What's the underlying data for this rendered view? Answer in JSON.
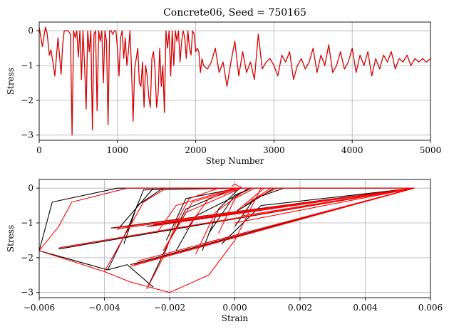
{
  "chart_data": [
    {
      "type": "line",
      "title": "Concrete06, Seed = 750165",
      "xlabel": "Step Number",
      "ylabel": "Stress",
      "xlim": [
        0,
        5000
      ],
      "ylim": [
        -3.15,
        0.25
      ],
      "xticks": [
        0,
        1000,
        2000,
        3000,
        4000,
        5000
      ],
      "xtick_labels": [
        "0",
        "1000",
        "2000",
        "3000",
        "4000",
        "5000"
      ],
      "yticks": [
        0,
        -1,
        -2,
        -3
      ],
      "ytick_labels": [
        "0",
        "−1",
        "−2",
        "−3"
      ],
      "grid": true,
      "legend": "none",
      "series": [
        {
          "color": "#d40000",
          "x": [
            0,
            40,
            80,
            100,
            130,
            150,
            175,
            200,
            240,
            280,
            300,
            320,
            340,
            370,
            400,
            420,
            440,
            460,
            480,
            500,
            520,
            540,
            560,
            580,
            600,
            620,
            640,
            660,
            680,
            700,
            720,
            740,
            760,
            780,
            800,
            820,
            840,
            860,
            880,
            900,
            920,
            940,
            960,
            980,
            1000,
            1020,
            1040,
            1060,
            1080,
            1100,
            1120,
            1140,
            1160,
            1180,
            1200,
            1220,
            1240,
            1260,
            1280,
            1300,
            1320,
            1340,
            1360,
            1380,
            1400,
            1420,
            1440,
            1460,
            1480,
            1500,
            1520,
            1540,
            1560,
            1580,
            1600,
            1620,
            1640,
            1660,
            1680,
            1700,
            1720,
            1740,
            1760,
            1780,
            1800,
            1820,
            1840,
            1860,
            1880,
            1900,
            1920,
            1940,
            1960,
            1980,
            2000,
            2020,
            2040,
            2060,
            2080,
            2100,
            2150,
            2200,
            2250,
            2300,
            2350,
            2400,
            2450,
            2500,
            2550,
            2600,
            2650,
            2700,
            2750,
            2800,
            2850,
            2900,
            2950,
            3000,
            3050,
            3100,
            3150,
            3200,
            3250,
            3300,
            3350,
            3400,
            3450,
            3500,
            3550,
            3600,
            3650,
            3700,
            3750,
            3800,
            3850,
            3900,
            3950,
            4000,
            4050,
            4100,
            4150,
            4200,
            4250,
            4300,
            4350,
            4400,
            4450,
            4500,
            4550,
            4600,
            4650,
            4700,
            4750,
            4800,
            4850,
            4900,
            4950,
            5000
          ],
          "y": [
            0.1,
            -0.45,
            0.1,
            -0.05,
            -0.7,
            -0.55,
            -0.9,
            -1.3,
            -0.2,
            -1.25,
            -0.4,
            0.0,
            0.0,
            0.0,
            -0.1,
            -3.0,
            0.0,
            -0.2,
            0.0,
            -0.75,
            0.0,
            -1.4,
            0.0,
            -1.0,
            -2.25,
            0.0,
            -0.6,
            0.0,
            -2.85,
            -0.1,
            0.0,
            -2.3,
            0.0,
            -0.3,
            0.0,
            -1.5,
            0.0,
            -0.3,
            -2.7,
            0.0,
            0.0,
            -0.1,
            0.0,
            0.0,
            -0.5,
            -1.3,
            -0.2,
            0.0,
            -0.8,
            -0.2,
            -1.0,
            -0.6,
            0.0,
            -1.1,
            -2.6,
            -1.1,
            -0.8,
            -0.5,
            -1.5,
            -1.6,
            -0.9,
            -2.2,
            -1.0,
            -1.3,
            -1.9,
            -2.2,
            -0.8,
            -0.6,
            -1.1,
            -2.2,
            -1.8,
            -0.5,
            -1.6,
            -1.0,
            -2.35,
            0.0,
            -0.5,
            0.0,
            -1.3,
            0.0,
            -1.0,
            0.0,
            -0.3,
            0.0,
            -0.9,
            -0.3,
            0.0,
            -0.2,
            -0.8,
            0.0,
            -0.5,
            -0.7,
            0.0,
            -0.1,
            -0.6,
            -0.5,
            -0.6,
            -1.2,
            -0.8,
            -1.0,
            -1.1,
            -0.9,
            -0.5,
            -1.2,
            -0.9,
            -1.6,
            -0.9,
            -0.3,
            -1.3,
            -0.6,
            -1.2,
            -0.9,
            -1.4,
            -0.1,
            -1.1,
            -0.9,
            -0.8,
            -1.0,
            -1.3,
            -0.7,
            -0.9,
            -0.6,
            -1.4,
            -1.0,
            -0.8,
            -1.1,
            -0.9,
            -0.5,
            -1.2,
            -0.7,
            -1.0,
            -0.4,
            -1.2,
            -1.0,
            -0.6,
            -1.1,
            -0.9,
            -0.5,
            -1.2,
            -0.7,
            -1.0,
            -0.6,
            -1.3,
            -0.8,
            -1.1,
            -0.7,
            -0.9,
            -0.6,
            -1.1,
            -0.8,
            -0.9,
            -0.7,
            -1.0,
            -0.8,
            -0.9,
            -0.8,
            -0.9,
            -0.8
          ]
        }
      ]
    },
    {
      "type": "line",
      "title": "",
      "xlabel": "Strain",
      "ylabel": "Stress",
      "xlim": [
        -0.006,
        0.006
      ],
      "ylim": [
        -3.15,
        0.25
      ],
      "xticks": [
        -0.006,
        -0.004,
        -0.002,
        0.0,
        0.002,
        0.004,
        0.006
      ],
      "xtick_labels": [
        "−0.006",
        "−0.004",
        "−0.002",
        "0.000",
        "0.002",
        "0.004",
        "0.006"
      ],
      "yticks": [
        0,
        -1,
        -2,
        -3
      ],
      "ytick_labels": [
        "0",
        "−1",
        "−2",
        "−3"
      ],
      "grid": true,
      "legend": "none",
      "series": [
        {
          "color": "#000000",
          "segments": [
            [
              [
                -0.006,
                -1.8
              ],
              [
                -0.0056,
                -0.4
              ],
              [
                -0.0036,
                0.0
              ],
              [
                0.0055,
                0.0
              ]
            ],
            [
              [
                -0.006,
                -1.8
              ],
              [
                -0.0039,
                -2.35
              ]
            ],
            [
              [
                -0.0054,
                -1.75
              ],
              [
                0.0055,
                0.0
              ]
            ],
            [
              [
                -0.0039,
                -2.35
              ],
              [
                -0.0033,
                -1.2
              ],
              [
                -0.0028,
                -0.05
              ],
              [
                0.0003,
                0.0
              ]
            ],
            [
              [
                -0.0039,
                -2.35
              ],
              [
                -0.0033,
                -2.2
              ],
              [
                -0.0025,
                -2.85
              ]
            ],
            [
              [
                -0.0038,
                -1.15
              ],
              [
                0.0055,
                0.0
              ]
            ],
            [
              [
                -0.0027,
                -2.9
              ],
              [
                -0.002,
                -1.5
              ],
              [
                -0.0015,
                -0.6
              ],
              [
                0.0,
                0.0
              ]
            ],
            [
              [
                -0.0034,
                -1.6
              ],
              [
                -0.003,
                -0.5
              ],
              [
                -0.0022,
                0.0
              ]
            ],
            [
              [
                -0.0027,
                -1.1
              ],
              [
                0.0055,
                0.0
              ]
            ],
            [
              [
                -0.0032,
                -2.2
              ],
              [
                0.0055,
                0.0
              ]
            ],
            [
              [
                -0.0018,
                -1.8
              ],
              [
                -0.0012,
                -0.8
              ],
              [
                0.0005,
                0.0
              ]
            ],
            [
              [
                -0.0036,
                -1.2
              ],
              [
                -0.0025,
                0.0
              ],
              [
                0.0002,
                0.0
              ]
            ],
            [
              [
                -0.0021,
                -1.5
              ],
              [
                -0.0015,
                -0.3
              ],
              [
                0.0001,
                0.0
              ]
            ],
            [
              [
                -0.001,
                -1.8
              ],
              [
                -0.0005,
                -0.6
              ],
              [
                0.0002,
                0.05
              ]
            ],
            [
              [
                -0.0008,
                -1.3
              ],
              [
                0.0,
                -0.2
              ],
              [
                0.0005,
                0.0
              ]
            ],
            [
              [
                0.0,
                -1.1
              ],
              [
                0.0006,
                -0.3
              ],
              [
                0.0015,
                0.0
              ]
            ],
            [
              [
                -0.0004,
                -1.6
              ],
              [
                0.0008,
                -0.5
              ],
              [
                0.0055,
                0.0
              ]
            ],
            [
              [
                0.0,
                -0.7
              ],
              [
                0.0012,
                0.0
              ]
            ]
          ]
        },
        {
          "color": "#ff0000",
          "segments": [
            [
              [
                -0.006,
                -1.8
              ],
              [
                -0.0054,
                -1.1
              ],
              [
                -0.005,
                -0.4
              ],
              [
                -0.0033,
                0.0
              ],
              [
                0.0055,
                0.0
              ]
            ],
            [
              [
                -0.006,
                -1.8
              ],
              [
                -0.004,
                -2.4
              ],
              [
                -0.0032,
                -2.7
              ],
              [
                -0.002,
                -3.0
              ],
              [
                -0.0008,
                -2.5
              ],
              [
                0.0,
                -1.5
              ],
              [
                0.0008,
                0.0
              ]
            ],
            [
              [
                -0.0054,
                -1.72
              ],
              [
                0.0055,
                0.0
              ]
            ],
            [
              [
                -0.0053,
                -1.7
              ],
              [
                0.0055,
                0.0
              ]
            ],
            [
              [
                -0.004,
                -2.4
              ],
              [
                -0.0034,
                -1.4
              ],
              [
                -0.0028,
                -0.4
              ],
              [
                -0.0021,
                0.0
              ],
              [
                0.0003,
                0.0
              ]
            ],
            [
              [
                -0.0037,
                -1.15
              ],
              [
                0.0055,
                0.0
              ]
            ],
            [
              [
                -0.0036,
                -1.17
              ],
              [
                0.0055,
                0.0
              ]
            ],
            [
              [
                -0.0027,
                -2.9
              ],
              [
                -0.0022,
                -2.0
              ],
              [
                -0.0018,
                -1.0
              ],
              [
                -0.0014,
                -0.3
              ],
              [
                -0.0005,
                0.0
              ]
            ],
            [
              [
                -0.0032,
                -2.25
              ],
              [
                0.0055,
                0.0
              ]
            ],
            [
              [
                -0.0031,
                -2.2
              ],
              [
                0.0055,
                0.0
              ]
            ],
            [
              [
                -0.003,
                -2.1
              ],
              [
                0.0055,
                0.0
              ]
            ],
            [
              [
                -0.0026,
                -1.1
              ],
              [
                0.0055,
                0.0
              ]
            ],
            [
              [
                -0.0025,
                -1.05
              ],
              [
                0.0055,
                0.0
              ]
            ],
            [
              [
                -0.0024,
                -1.3
              ],
              [
                -0.0018,
                -0.5
              ],
              [
                0.0,
                0.0
              ]
            ],
            [
              [
                -0.0022,
                -1.8
              ],
              [
                -0.0015,
                -0.7
              ],
              [
                0.0002,
                0.0
              ]
            ],
            [
              [
                -0.002,
                -1.5
              ],
              [
                -0.0013,
                -0.4
              ],
              [
                0.0001,
                0.0
              ]
            ],
            [
              [
                -0.0015,
                -1.2
              ],
              [
                -0.0008,
                -0.3
              ],
              [
                0.0002,
                0.0
              ]
            ],
            [
              [
                -0.0012,
                -1.9
              ],
              [
                -0.0006,
                -0.7
              ],
              [
                0.0004,
                0.0
              ]
            ],
            [
              [
                -0.001,
                -1.6
              ],
              [
                0.0055,
                0.0
              ]
            ],
            [
              [
                -0.0008,
                -1.0
              ],
              [
                0.0055,
                0.0
              ]
            ],
            [
              [
                -0.0005,
                -1.3
              ],
              [
                0.0,
                -0.3
              ],
              [
                0.0006,
                0.0
              ]
            ],
            [
              [
                0.0,
                -1.0
              ],
              [
                0.0055,
                0.0
              ]
            ],
            [
              [
                0.0002,
                -0.8
              ],
              [
                0.0055,
                0.0
              ]
            ],
            [
              [
                0.0,
                -0.7
              ],
              [
                0.0009,
                0.0
              ]
            ],
            [
              [
                0.0003,
                -0.5
              ],
              [
                0.0011,
                0.0
              ]
            ],
            [
              [
                0.0005,
                -0.35
              ],
              [
                0.0013,
                0.0
              ]
            ],
            [
              [
                -0.0001,
                0.05
              ],
              [
                0.0,
                0.12
              ],
              [
                0.0002,
                0.0
              ]
            ]
          ]
        }
      ]
    }
  ]
}
